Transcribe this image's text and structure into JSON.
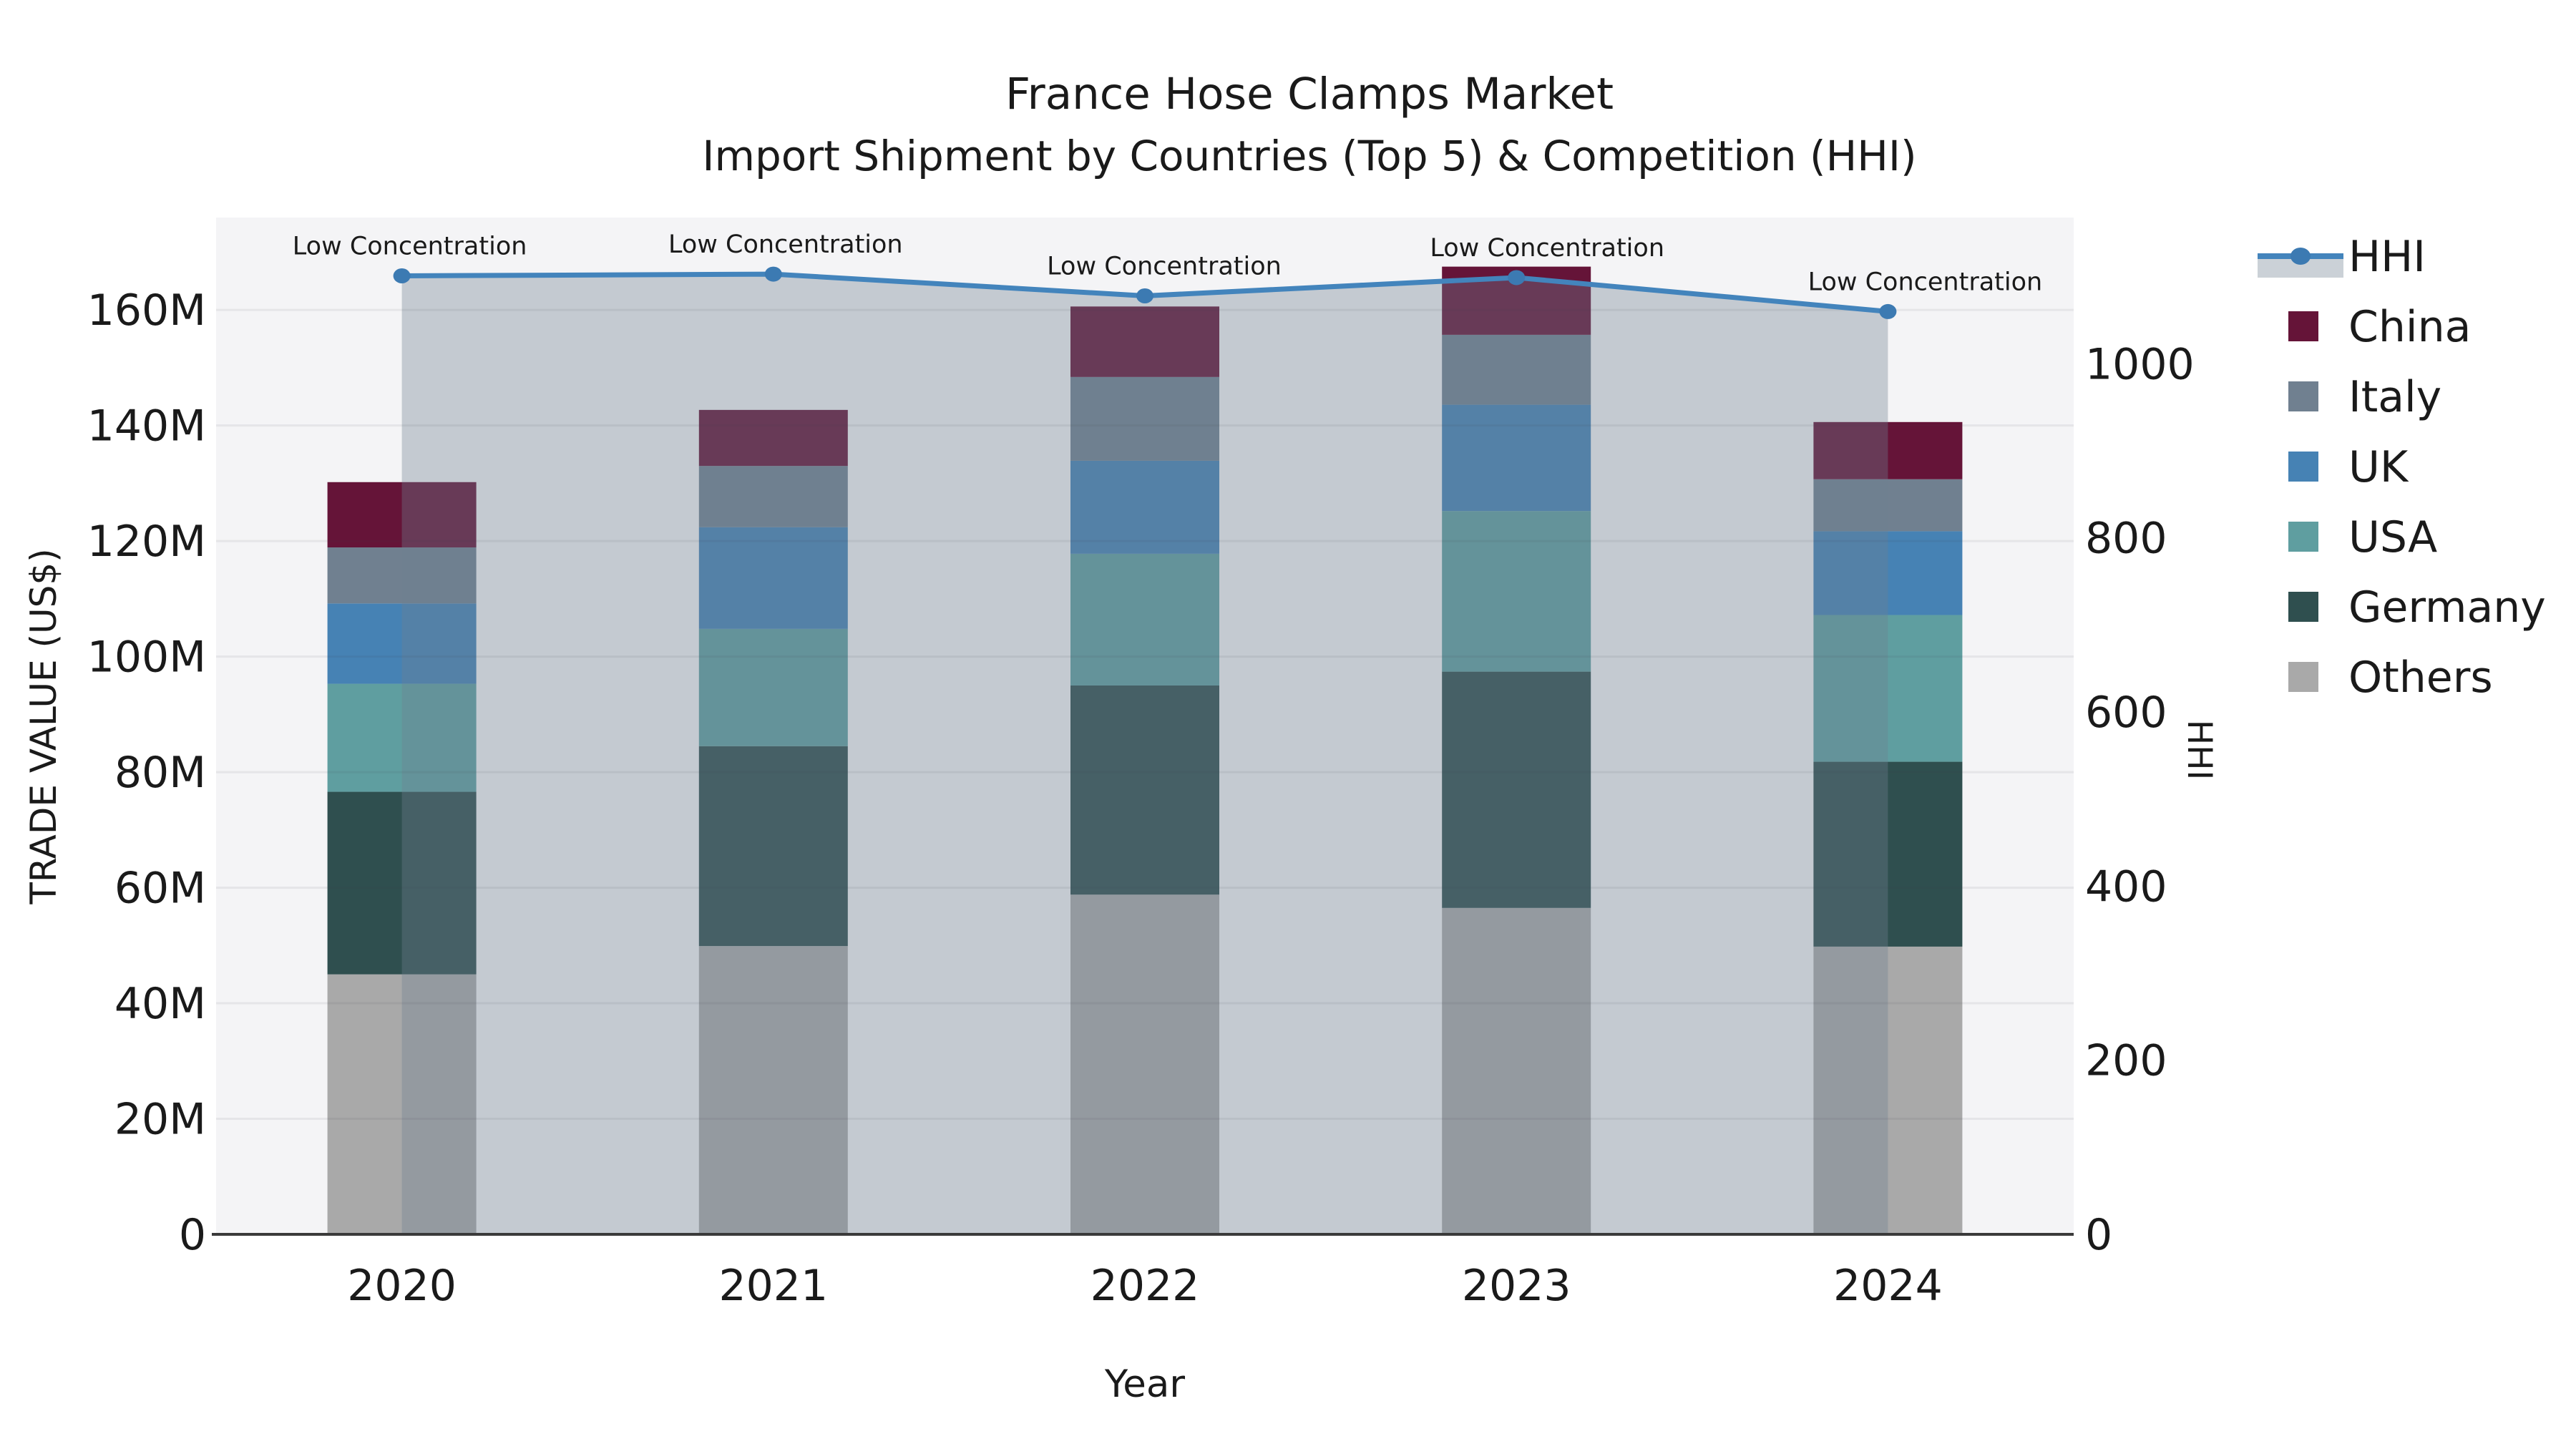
{
  "chart_data": {
    "type": "combo-stacked-bar-line",
    "title": "France Hose Clamps Market",
    "subtitle": "Import Shipment by Countries (Top 5) & Competition (HHI)",
    "xlabel": "Year",
    "ylabel": "TRADE VALUE (US$)",
    "y2label": "HHI",
    "categories": [
      "2020",
      "2021",
      "2022",
      "2023",
      "2024"
    ],
    "unit": "M US$",
    "stacked": true,
    "series": [
      {
        "name": "Others",
        "color": "#a9a9a9",
        "values": [
          45.0,
          49.9,
          58.8,
          56.5,
          49.8
        ]
      },
      {
        "name": "Germany",
        "color": "#2f4f4f",
        "values": [
          31.6,
          34.6,
          36.2,
          40.9,
          32.0
        ]
      },
      {
        "name": "USA",
        "color": "#5f9ea0",
        "values": [
          18.7,
          20.3,
          22.8,
          27.8,
          25.4
        ]
      },
      {
        "name": "UK",
        "color": "#4682b4",
        "values": [
          13.9,
          17.6,
          16.1,
          18.4,
          14.5
        ]
      },
      {
        "name": "Italy",
        "color": "#708090",
        "values": [
          9.7,
          10.6,
          14.5,
          12.1,
          9.0
        ]
      },
      {
        "name": "China",
        "color": "#651438",
        "values": [
          11.3,
          9.7,
          12.2,
          11.8,
          9.9
        ]
      }
    ],
    "totals": [
      130.2,
      142.7,
      160.6,
      167.5,
      140.6
    ],
    "line_series": {
      "name": "HHI",
      "values": [
        1101,
        1103,
        1078,
        1099,
        1060
      ],
      "color": "#4384bc",
      "marker_color": "#3c7ab2",
      "band_color": "#708090",
      "band_opacity": 0.36
    },
    "annotations": [
      {
        "category": "2020",
        "text": "Low Concentration"
      },
      {
        "category": "2021",
        "text": "Low Concentration"
      },
      {
        "category": "2022",
        "text": "Low Concentration"
      },
      {
        "category": "2023",
        "text": "Low Concentration"
      },
      {
        "category": "2024",
        "text": "Low Concentration"
      }
    ],
    "y_ticks": {
      "values": [
        0,
        20,
        40,
        60,
        80,
        100,
        120,
        140,
        160
      ],
      "labels": [
        "0",
        "20M",
        "40M",
        "60M",
        "80M",
        "100M",
        "120M",
        "140M",
        "160M"
      ]
    },
    "y2_ticks": {
      "values": [
        0,
        200,
        400,
        600,
        800,
        1000
      ],
      "labels": [
        "0",
        "200",
        "400",
        "600",
        "800",
        "1000"
      ]
    },
    "ylim": [
      0,
      176
    ],
    "y2lim": [
      0,
      1168
    ],
    "grid": true,
    "plot_bg": "#f4f4f6",
    "spine_color": "#3a3a3a",
    "legend": {
      "position": "right-top",
      "entries": [
        {
          "label": "HHI",
          "type": "line",
          "color": "#4384bc"
        },
        {
          "label": "China",
          "type": "swatch",
          "color": "#651438"
        },
        {
          "label": "Italy",
          "type": "swatch",
          "color": "#708090"
        },
        {
          "label": "UK",
          "type": "swatch",
          "color": "#4682b4"
        },
        {
          "label": "USA",
          "type": "swatch",
          "color": "#5f9ea0"
        },
        {
          "label": "Germany",
          "type": "swatch",
          "color": "#2f4f4f"
        },
        {
          "label": "Others",
          "type": "swatch",
          "color": "#a9a9a9"
        }
      ]
    }
  }
}
